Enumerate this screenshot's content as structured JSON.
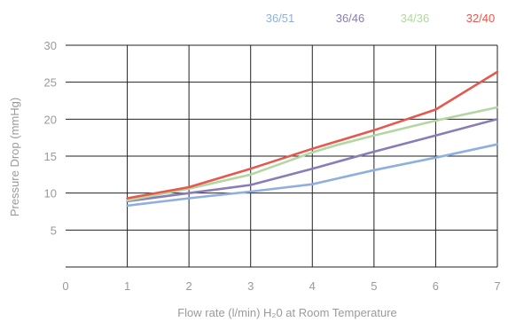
{
  "chart_data": {
    "type": "line",
    "xlabel": "Flow rate (l/min) H₂0 at Room Temperature",
    "ylabel": "Pressure Drop (mmHg)",
    "xlim": [
      0,
      7
    ],
    "ylim": [
      0,
      30
    ],
    "x_ticks": [
      "0",
      "1",
      "2",
      "3",
      "4",
      "5",
      "6",
      "7"
    ],
    "y_ticks": [
      "5",
      "10",
      "15",
      "20",
      "25",
      "30"
    ],
    "grid": true,
    "legend_position": "top-right",
    "series": [
      {
        "name": "36/51",
        "color": "#8fb0de",
        "x": [
          1,
          2,
          3,
          4,
          5,
          6,
          7
        ],
        "y": [
          8.3,
          9.3,
          10.2,
          11.2,
          13.1,
          14.8,
          16.6
        ]
      },
      {
        "name": "36/46",
        "color": "#8a7cb8",
        "x": [
          1,
          2,
          3,
          4,
          5,
          6,
          7
        ],
        "y": [
          8.9,
          10.0,
          11.1,
          13.3,
          15.6,
          17.8,
          20.0
        ]
      },
      {
        "name": "34/36",
        "color": "#b3d7a3",
        "x": [
          1,
          2,
          3,
          4,
          4.4,
          5,
          6,
          7
        ],
        "y": [
          9.0,
          10.6,
          12.5,
          15.5,
          16.5,
          17.8,
          19.8,
          21.6
        ]
      },
      {
        "name": "32/40",
        "color": "#e8574c",
        "x": [
          1,
          2,
          3,
          4,
          5,
          6,
          7
        ],
        "y": [
          9.3,
          10.8,
          13.3,
          16.0,
          18.5,
          21.3,
          26.4
        ]
      }
    ]
  }
}
